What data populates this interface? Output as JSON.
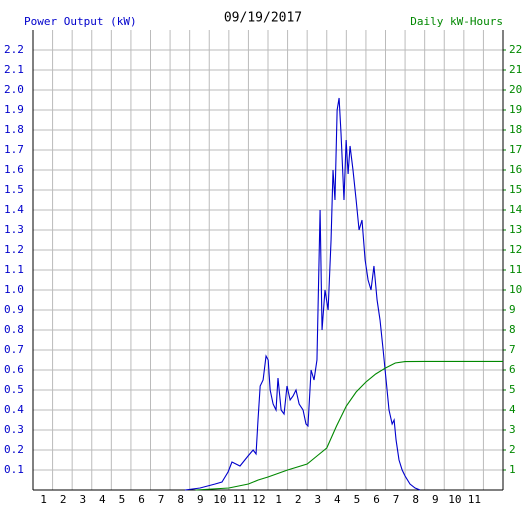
{
  "chart_data": {
    "type": "line",
    "title": "09/19/2017",
    "ylabel": "Power Output (kW)",
    "y2label": "Daily kW-Hours",
    "xlim": [
      0,
      24
    ],
    "xticks": [
      1,
      2,
      3,
      4,
      5,
      6,
      7,
      8,
      9,
      10,
      11,
      12,
      {
        "value": 13,
        "label": "1"
      },
      {
        "value": 14,
        "label": "2"
      },
      {
        "value": 15,
        "label": "3"
      },
      {
        "value": 16,
        "label": "4"
      },
      {
        "value": 17,
        "label": "5"
      },
      {
        "value": 18,
        "label": "6"
      },
      {
        "value": 19,
        "label": "7"
      },
      {
        "value": 20,
        "label": "8"
      },
      {
        "value": 21,
        "label": "9"
      },
      {
        "value": 22,
        "label": "10"
      },
      {
        "value": 23,
        "label": "11"
      }
    ],
    "ylim": [
      0,
      2.3
    ],
    "yticks": [
      0.1,
      0.2,
      0.3,
      0.4,
      0.5,
      0.6,
      0.7,
      0.8,
      0.9,
      {
        "value": 1,
        "label": "1.0"
      },
      1.1,
      1.2,
      1.3,
      1.4,
      1.5,
      1.6,
      1.7,
      1.8,
      1.9,
      {
        "value": 2,
        "label": "2.0"
      },
      2.1,
      2.2
    ],
    "y2lim": [
      0,
      23
    ],
    "y2ticks": [
      1,
      2,
      3,
      4,
      5,
      6,
      7,
      8,
      9,
      10,
      11,
      12,
      13,
      14,
      15,
      16,
      17,
      18,
      19,
      20,
      21,
      22
    ],
    "grid": true,
    "series": [
      {
        "name": "Power Output (kW)",
        "color": "#0000cc",
        "x": [
          7.76,
          8.53,
          9.3,
          9.65,
          9.96,
          10.16,
          10.57,
          10.98,
          11.24,
          11.39,
          11.49,
          11.6,
          11.75,
          11.9,
          12.01,
          12.11,
          12.26,
          12.41,
          12.51,
          12.67,
          12.82,
          12.97,
          13.13,
          13.28,
          13.43,
          13.59,
          13.79,
          13.94,
          14.04,
          14.2,
          14.35,
          14.5,
          14.66,
          14.76,
          14.91,
          15.07,
          15.22,
          15.32,
          15.42,
          15.53,
          15.63,
          15.73,
          15.88,
          15.99,
          16.09,
          16.19,
          16.34,
          16.5,
          16.65,
          16.8,
          16.96,
          17.11,
          17.26,
          17.41,
          17.57,
          17.72,
          17.88,
          18.03,
          18.18,
          18.34,
          18.44,
          18.54,
          18.69,
          18.85,
          19.0,
          19.25,
          19.51,
          19.77
        ],
        "values": [
          0,
          0.01,
          0.03,
          0.04,
          0.09,
          0.14,
          0.12,
          0.17,
          0.2,
          0.18,
          0.35,
          0.52,
          0.55,
          0.67,
          0.65,
          0.5,
          0.43,
          0.4,
          0.56,
          0.4,
          0.38,
          0.52,
          0.45,
          0.47,
          0.5,
          0.43,
          0.4,
          0.33,
          0.32,
          0.6,
          0.55,
          0.65,
          1.4,
          0.8,
          1.0,
          0.9,
          1.25,
          1.6,
          1.45,
          1.9,
          1.96,
          1.78,
          1.45,
          1.75,
          1.58,
          1.72,
          1.6,
          1.45,
          1.3,
          1.35,
          1.15,
          1.05,
          1.0,
          1.12,
          0.95,
          0.85,
          0.7,
          0.55,
          0.4,
          0.33,
          0.35,
          0.25,
          0.15,
          0.1,
          0.07,
          0.03,
          0.01,
          0
        ]
      },
      {
        "name": "Daily kW-Hours",
        "color": "#008800",
        "axis": "y2",
        "x": [
          8.3,
          10,
          11,
          11.5,
          12,
          13,
          14,
          14.5,
          15,
          15.5,
          16,
          16.5,
          17,
          17.5,
          18,
          18.5,
          19,
          20,
          24
        ],
        "values": [
          0,
          0.1,
          0.3,
          0.5,
          0.65,
          1.0,
          1.3,
          1.7,
          2.1,
          3.2,
          4.2,
          4.9,
          5.4,
          5.8,
          6.1,
          6.35,
          6.42,
          6.43,
          6.43
        ]
      }
    ]
  }
}
